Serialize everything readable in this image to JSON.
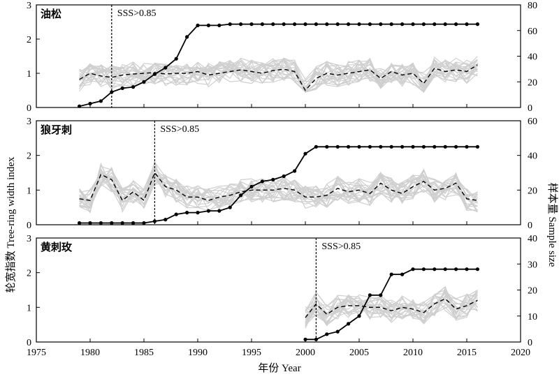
{
  "figure": {
    "xlabel": "年份 Year",
    "ylabel_left": "轮宽指数  Tree-ring width index",
    "ylabel_right": "样本量  Sample size",
    "x_ticks": [
      "1975",
      "1980",
      "1985",
      "1990",
      "1995",
      "2000",
      "2005",
      "2010",
      "2015",
      "2020"
    ],
    "y_ticks_left": [
      "0",
      "1",
      "2",
      "3"
    ]
  },
  "chart_data": [
    {
      "type": "line",
      "panel_label": "油松",
      "sss_label": "SSS>0.85",
      "sss_year": 1982,
      "xlim": [
        1975,
        2020
      ],
      "ylim_left": [
        0,
        3
      ],
      "ylim_right": [
        0,
        80
      ],
      "y_ticks_right": [
        "0",
        "20",
        "40",
        "60",
        "80"
      ],
      "sample_size": {
        "x": [
          1979,
          1980,
          1981,
          1982,
          1983,
          1984,
          1985,
          1986,
          1987,
          1988,
          1989,
          1990,
          1991,
          1992,
          1993,
          1994,
          1995,
          1996,
          1997,
          1998,
          1999,
          2000,
          2001,
          2002,
          2003,
          2004,
          2005,
          2006,
          2007,
          2008,
          2009,
          2010,
          2011,
          2012,
          2013,
          2014,
          2015,
          2016
        ],
        "values": [
          1,
          3,
          5,
          12,
          15,
          16,
          20,
          26,
          31,
          38,
          55,
          64,
          64,
          64,
          65,
          65,
          65,
          65,
          65,
          65,
          65,
          65,
          65,
          65,
          65,
          65,
          65,
          65,
          65,
          65,
          65,
          65,
          65,
          65,
          65,
          65,
          65,
          65
        ]
      },
      "mean_index": {
        "x": [
          1979,
          1980,
          1981,
          1982,
          1983,
          1984,
          1985,
          1986,
          1987,
          1988,
          1989,
          1990,
          1991,
          1992,
          1993,
          1994,
          1995,
          1996,
          1997,
          1998,
          1999,
          2000,
          2001,
          2002,
          2003,
          2004,
          2005,
          2006,
          2007,
          2008,
          2009,
          2010,
          2011,
          2012,
          2013,
          2014,
          2015,
          2016
        ],
        "values": [
          0.82,
          1.0,
          0.92,
          0.88,
          0.95,
          0.98,
          1.0,
          1.02,
          0.98,
          1.0,
          1.0,
          1.05,
          0.95,
          1.0,
          1.05,
          1.1,
          1.05,
          1.0,
          1.08,
          1.12,
          1.05,
          0.5,
          0.85,
          1.0,
          0.95,
          1.0,
          1.05,
          1.1,
          0.85,
          1.05,
          0.95,
          1.0,
          0.7,
          1.15,
          1.05,
          1.1,
          1.05,
          1.25
        ]
      },
      "individual_range": {
        "x_start": 1979,
        "x_end": 2016,
        "low": 0.55,
        "high": 1.75
      }
    },
    {
      "type": "line",
      "panel_label": "狼牙刺",
      "sss_label": "SSS>0.85",
      "sss_year": 1986,
      "xlim": [
        1975,
        2020
      ],
      "ylim_left": [
        0,
        3
      ],
      "ylim_right": [
        0,
        60
      ],
      "y_ticks_right": [
        "0",
        "20",
        "40",
        "60"
      ],
      "sample_size": {
        "x": [
          1979,
          1980,
          1981,
          1982,
          1983,
          1984,
          1985,
          1986,
          1987,
          1988,
          1989,
          1990,
          1991,
          1992,
          1993,
          1994,
          1995,
          1996,
          1997,
          1998,
          1999,
          2000,
          2001,
          2002,
          2003,
          2004,
          2005,
          2006,
          2007,
          2008,
          2009,
          2010,
          2011,
          2012,
          2013,
          2014,
          2015,
          2016
        ],
        "values": [
          1,
          1,
          1,
          1,
          1,
          1,
          1,
          2,
          3,
          6,
          7,
          7,
          8,
          8,
          10,
          17,
          22,
          25,
          26,
          28,
          31,
          41,
          45,
          45,
          45,
          45,
          45,
          45,
          45,
          45,
          45,
          45,
          45,
          45,
          45,
          45,
          45,
          45
        ]
      },
      "mean_index": {
        "x": [
          1979,
          1980,
          1981,
          1982,
          1983,
          1984,
          1985,
          1986,
          1987,
          1988,
          1989,
          1990,
          1991,
          1992,
          1993,
          1994,
          1995,
          1996,
          1997,
          1998,
          1999,
          2000,
          2001,
          2002,
          2003,
          2004,
          2005,
          2006,
          2007,
          2008,
          2009,
          2010,
          2011,
          2012,
          2013,
          2014,
          2015,
          2016
        ],
        "values": [
          0.75,
          0.7,
          1.45,
          1.3,
          0.7,
          0.95,
          0.7,
          1.5,
          1.1,
          1.0,
          0.8,
          0.8,
          0.7,
          0.8,
          0.85,
          0.95,
          1.0,
          1.0,
          1.0,
          1.05,
          1.0,
          0.8,
          0.8,
          0.85,
          1.05,
          0.95,
          1.0,
          0.9,
          1.2,
          1.0,
          0.9,
          1.1,
          1.25,
          1.0,
          1.05,
          1.2,
          0.75,
          0.7
        ]
      },
      "individual_range": {
        "x_start": 1979,
        "x_end": 2016,
        "low": 0.45,
        "high": 1.75
      }
    },
    {
      "type": "line",
      "panel_label": "黄刺玫",
      "sss_label": "SSS>0.85",
      "sss_year": 2001,
      "xlim": [
        1975,
        2020
      ],
      "ylim_left": [
        0,
        3
      ],
      "ylim_right": [
        0,
        40
      ],
      "y_ticks_right": [
        "0",
        "10",
        "20",
        "30",
        "40"
      ],
      "sample_size": {
        "x": [
          2000,
          2001,
          2002,
          2003,
          2004,
          2005,
          2006,
          2007,
          2008,
          2009,
          2010,
          2011,
          2012,
          2013,
          2014,
          2015,
          2016
        ],
        "values": [
          1,
          1,
          3,
          4,
          7,
          10,
          18,
          18,
          26,
          26,
          28,
          28,
          28,
          28,
          28,
          28,
          28
        ]
      },
      "mean_index": {
        "x": [
          2000,
          2001,
          2002,
          2003,
          2004,
          2005,
          2006,
          2007,
          2008,
          2009,
          2010,
          2011,
          2012,
          2013,
          2014,
          2015,
          2016
        ],
        "values": [
          0.7,
          1.1,
          0.8,
          1.0,
          1.05,
          1.05,
          1.0,
          1.0,
          0.9,
          1.0,
          0.95,
          0.85,
          1.1,
          1.25,
          0.95,
          1.05,
          1.2
        ]
      },
      "individual_range": {
        "x_start": 2000,
        "x_end": 2016,
        "low": 0.5,
        "high": 1.8
      }
    }
  ]
}
